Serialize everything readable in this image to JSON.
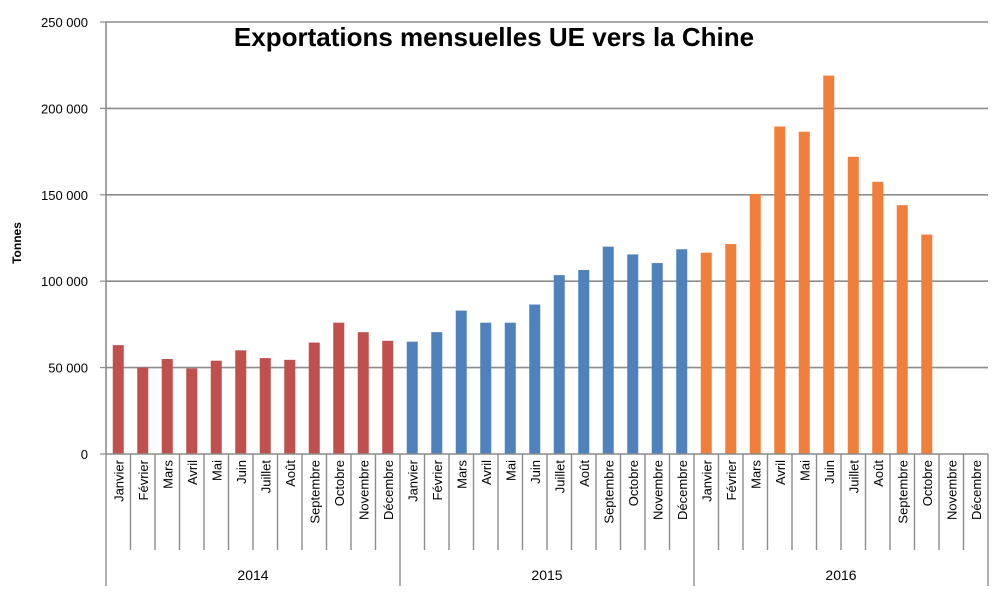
{
  "chart_data": {
    "type": "bar",
    "title": "Exportations mensuelles UE vers la Chine",
    "ylabel": "Tonnes",
    "ylim": [
      0,
      250000
    ],
    "yticks": [
      0,
      50000,
      100000,
      150000,
      200000,
      250000
    ],
    "ytick_labels": [
      "0",
      "50 000",
      "100 000",
      "150 000",
      "200 000",
      "250 000"
    ],
    "grid": true,
    "months": [
      "Janvier",
      "Février",
      "Mars",
      "Avril",
      "Mai",
      "Juin",
      "Juillet",
      "Août",
      "Septembre",
      "Octobre",
      "Novembre",
      "Décembre"
    ],
    "groups": [
      {
        "year": "2014",
        "color": "#c0504d",
        "values": [
          63000,
          50000,
          55000,
          49500,
          54000,
          60000,
          55500,
          54500,
          64500,
          76000,
          70500,
          65500
        ]
      },
      {
        "year": "2015",
        "color": "#4f81bd",
        "values": [
          65000,
          70500,
          83000,
          76000,
          76000,
          86500,
          103500,
          106500,
          120000,
          115500,
          110500,
          118500
        ]
      },
      {
        "year": "2016",
        "color": "#f07f3c",
        "values": [
          116500,
          121500,
          150500,
          189500,
          186500,
          219000,
          172000,
          157500,
          144000,
          127000,
          null,
          null
        ]
      }
    ]
  }
}
